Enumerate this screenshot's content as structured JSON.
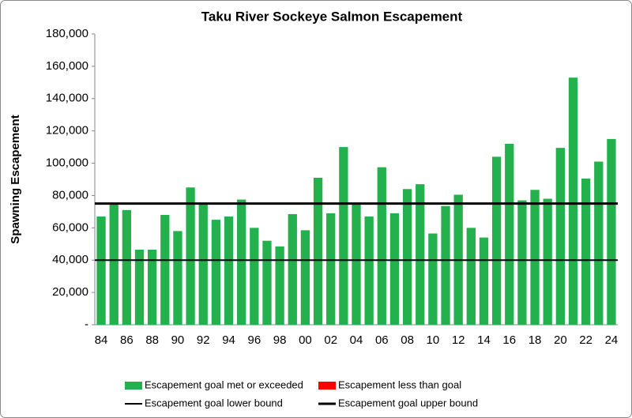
{
  "chart_data": {
    "type": "bar",
    "title": "Taku River Sockeye Salmon Escapement",
    "y_label": "Spawning Escapement",
    "categories": [
      "84",
      null,
      "86",
      null,
      "88",
      null,
      "90",
      null,
      "92",
      null,
      "94",
      null,
      "96",
      null,
      "98",
      null,
      "00",
      null,
      "02",
      null,
      "04",
      null,
      "06",
      null,
      "08",
      null,
      "10",
      null,
      "12",
      null,
      "14",
      null,
      "16",
      null,
      "18",
      null,
      "20",
      null,
      "22",
      null,
      "24"
    ],
    "series": [
      {
        "name": "Escapement goal met or exceeded",
        "color": "#22b14c",
        "values": [
          67000,
          75000,
          71000,
          46500,
          46500,
          68000,
          58000,
          85000,
          75000,
          65000,
          67000,
          77500,
          60000,
          52000,
          48500,
          68500,
          58500,
          91000,
          69000,
          110000,
          75000,
          67000,
          97500,
          69000,
          84000,
          87000,
          56500,
          73500,
          80500,
          60000,
          54000,
          104000,
          112000,
          77000,
          83500,
          78000,
          109500,
          153000,
          90500,
          101000,
          115000
        ]
      },
      {
        "name": "Escapement less than goal",
        "color": "#ff0000",
        "values": [
          null,
          null,
          null,
          null,
          null,
          null,
          null,
          null,
          null,
          null,
          null,
          null,
          null,
          null,
          null,
          null,
          null,
          null,
          null,
          null,
          null,
          null,
          null,
          null,
          null,
          null,
          null,
          null,
          null,
          null,
          null,
          null,
          null,
          null,
          null,
          null,
          null,
          null,
          null,
          null,
          null
        ]
      }
    ],
    "goal_lines": [
      {
        "name": "Escapement goal lower bound",
        "color": "#000000",
        "value": 40000
      },
      {
        "name": "Escapement goal upper bound",
        "color": "#000000",
        "value": 75000
      }
    ],
    "ylim": [
      0,
      180000
    ],
    "yticks": [
      {
        "value": 0,
        "label": "-"
      },
      {
        "value": 20000,
        "label": "20,000"
      },
      {
        "value": 40000,
        "label": "40,000"
      },
      {
        "value": 60000,
        "label": "60,000"
      },
      {
        "value": 80000,
        "label": "80,000"
      },
      {
        "value": 100000,
        "label": "100,000"
      },
      {
        "value": 120000,
        "label": "120,000"
      },
      {
        "value": 140000,
        "label": "140,000"
      },
      {
        "value": 160000,
        "label": "160,000"
      },
      {
        "value": 180000,
        "label": "180,000"
      }
    ]
  }
}
